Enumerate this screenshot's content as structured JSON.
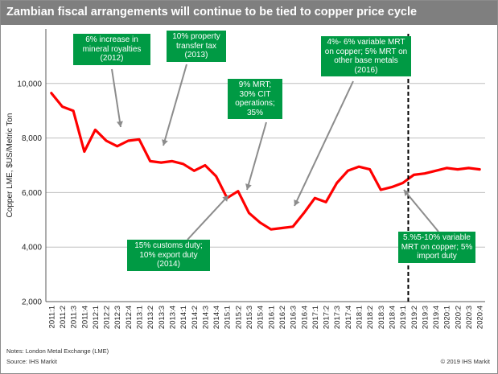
{
  "chart_data": {
    "type": "line",
    "title": "Zambian fiscal arrangements will continue to be tied to copper price cycle",
    "ylabel": "Copper LME, $US/Metric Ton",
    "xlabel": "",
    "ylim": [
      2000,
      12000
    ],
    "yticks": [
      2000,
      4000,
      6000,
      8000,
      10000
    ],
    "ytick_labels": [
      "2,000",
      "4,000",
      "6,000",
      "8,000",
      "10,000"
    ],
    "grid": true,
    "categories": [
      "2011:1",
      "2011:2",
      "2011:3",
      "2011:4",
      "2012:1",
      "2012:2",
      "2012:3",
      "2012:4",
      "2013:1",
      "2013:2",
      "2013:3",
      "2013:4",
      "2014:1",
      "2014:2",
      "2014:3",
      "2014:4",
      "2015:1",
      "2015:2",
      "2015:3",
      "2015:4",
      "2016:1",
      "2016:2",
      "2016:3",
      "2016:4",
      "2017:1",
      "2017:2",
      "2017:3",
      "2017:4",
      "2018:1",
      "2018:2",
      "2018:3",
      "2018:4",
      "2019:1",
      "2019:2",
      "2019:3",
      "2019:4",
      "2020:1",
      "2020:2",
      "2020:3",
      "2020:4"
    ],
    "series": [
      {
        "values": [
          9650,
          9150,
          9000,
          7500,
          8300,
          7900,
          7700,
          7900,
          7950,
          7150,
          7100,
          7150,
          7050,
          6800,
          7000,
          6600,
          5800,
          6050,
          5250,
          4900,
          4650,
          4700,
          4750,
          5250,
          5800,
          5650,
          6350,
          6800,
          6950,
          6850,
          6100,
          6200,
          6350,
          6650,
          6700,
          6800,
          6900,
          6850,
          6900,
          6850
        ],
        "color": "#ff0000"
      }
    ],
    "forecast_divider_after": "2019:1",
    "annotations": [
      {
        "text": "6% increase in mineral royalties (2012)",
        "points_to": "2012:3"
      },
      {
        "text": "10% property transfer tax (2013)",
        "points_to": "2013:2"
      },
      {
        "text": "9% MRT;  30% CIT operations; 35%",
        "points_to": "2015:2"
      },
      {
        "text": "4%- 6% variable MRT on copper; 5% MRT on other base metals (2016)",
        "points_to": "2016:3"
      },
      {
        "text": "15% customs duty; 10% export duty (2014)",
        "points_to": "2014:4"
      },
      {
        "text": "5.%5-10% variable MRT on copper; 5% import duty",
        "points_to": "2019:1"
      }
    ]
  },
  "footer": {
    "notes": "Notes: London  Metal Exchange  (LME)",
    "source": "Source:  IHS Markit",
    "copyright": "© 2019  IHS Markit"
  },
  "colors": {
    "title_bar": "#7f7f7f",
    "line": "#ff0000",
    "annotation_box": "#009a44",
    "divider": "#000000"
  }
}
